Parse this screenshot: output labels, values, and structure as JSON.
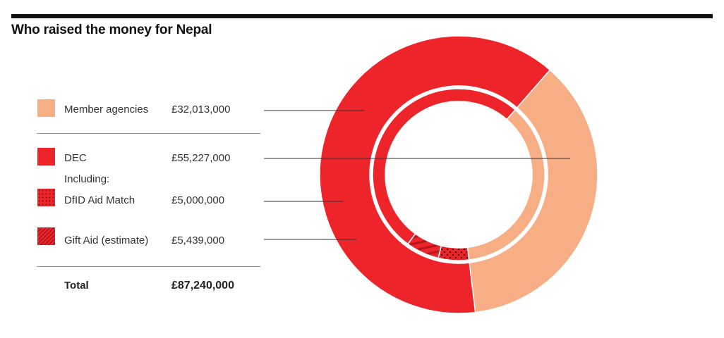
{
  "title": "Who raised the money for Nepal",
  "colors": {
    "member": "#f8ae85",
    "dec": "#ee242b",
    "leader": "#333333",
    "divider": "#9a9a9a"
  },
  "legend": {
    "member": {
      "label": "Member agencies",
      "value": "£32,013,000",
      "icon": "solid-peach-swatch"
    },
    "dec": {
      "label": "DEC",
      "value": "£55,227,000",
      "icon": "solid-red-swatch"
    },
    "including": "Including:",
    "dfid": {
      "label": "DfID Aid Match",
      "value": "£5,000,000",
      "icon": "dotted-red-swatch"
    },
    "gift": {
      "label": "Gift Aid (estimate)",
      "value": "£5,439,000",
      "icon": "striped-red-swatch"
    },
    "total": {
      "label": "Total",
      "value": "£87,240,000"
    }
  },
  "chart_data": {
    "type": "pie",
    "style": "nested donut",
    "title": "Who raised the money for Nepal",
    "total": 87240000,
    "outer_ring": [
      {
        "name": "Member agencies",
        "value": 32013000
      },
      {
        "name": "DEC",
        "value": 55227000
      }
    ],
    "inner_ring": [
      {
        "name": "Member agencies",
        "value": 32013000
      },
      {
        "name": "DfID Aid Match",
        "value": 5000000
      },
      {
        "name": "Gift Aid (estimate)",
        "value": 5439000
      },
      {
        "name": "DEC (other)",
        "value": 44788000
      }
    ]
  }
}
